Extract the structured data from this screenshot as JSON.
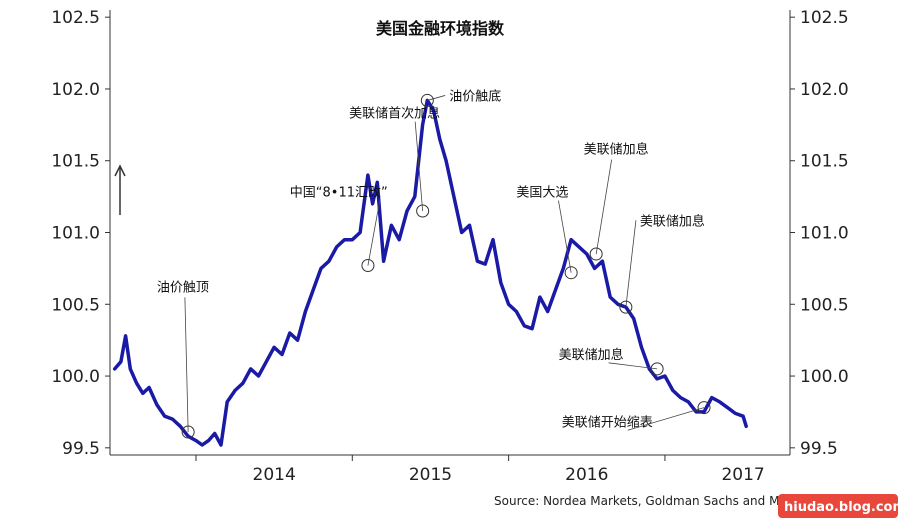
{
  "chart_data": {
    "type": "line",
    "title": "美国金融环境指数",
    "source": "Source: Nordea Markets, Goldman Sachs and Macrobond",
    "watermark": "hiudao.blog.com",
    "ylim": [
      99.45,
      102.55
    ],
    "yticks": [
      "102.5",
      "102.0",
      "101.5",
      "101.0",
      "100.5",
      "100.0",
      "99.5"
    ],
    "ytick_values": [
      102.5,
      102.0,
      101.5,
      101.0,
      100.5,
      100.0,
      99.5
    ],
    "xlim": [
      2013.45,
      2017.8
    ],
    "xticks": [
      "2014",
      "2015",
      "2016",
      "2017"
    ],
    "xtick_values": [
      2014,
      2015,
      2016,
      2017
    ],
    "year_boundaries": [
      2014.0,
      2015.0,
      2016.0,
      2017.0
    ],
    "up_arrow": true,
    "series": [
      {
        "color": "#1a1aa6",
        "x": [
          2013.48,
          2013.52,
          2013.55,
          2013.58,
          2013.62,
          2013.66,
          2013.7,
          2013.75,
          2013.8,
          2013.85,
          2013.9,
          2013.95,
          2014.0,
          2014.04,
          2014.08,
          2014.12,
          2014.16,
          2014.2,
          2014.25,
          2014.3,
          2014.35,
          2014.4,
          2014.45,
          2014.5,
          2014.55,
          2014.6,
          2014.65,
          2014.7,
          2014.75,
          2014.8,
          2014.85,
          2014.9,
          2014.95,
          2015.0,
          2015.05,
          2015.1,
          2015.13,
          2015.16,
          2015.2,
          2015.25,
          2015.3,
          2015.35,
          2015.4,
          2015.45,
          2015.48,
          2015.52,
          2015.56,
          2015.6,
          2015.65,
          2015.7,
          2015.75,
          2015.8,
          2015.85,
          2015.9,
          2015.95,
          2016.0,
          2016.05,
          2016.1,
          2016.15,
          2016.2,
          2016.25,
          2016.3,
          2016.35,
          2016.4,
          2016.45,
          2016.5,
          2016.55,
          2016.6,
          2016.65,
          2016.7,
          2016.75,
          2016.8,
          2016.85,
          2016.9,
          2016.95,
          2017.0,
          2017.05,
          2017.1,
          2017.15,
          2017.2,
          2017.25,
          2017.3,
          2017.35,
          2017.4,
          2017.45,
          2017.5,
          2017.52
        ],
        "y": [
          100.05,
          100.1,
          100.28,
          100.05,
          99.95,
          99.88,
          99.92,
          99.8,
          99.72,
          99.7,
          99.65,
          99.58,
          99.55,
          99.52,
          99.55,
          99.6,
          99.52,
          99.82,
          99.9,
          99.95,
          100.05,
          100.0,
          100.1,
          100.2,
          100.15,
          100.3,
          100.25,
          100.45,
          100.6,
          100.75,
          100.8,
          100.9,
          100.95,
          100.95,
          101.0,
          101.4,
          101.2,
          101.35,
          100.8,
          101.05,
          100.95,
          101.15,
          101.25,
          101.75,
          101.92,
          101.85,
          101.65,
          101.5,
          101.25,
          101.0,
          101.05,
          100.8,
          100.78,
          100.95,
          100.65,
          100.5,
          100.45,
          100.35,
          100.33,
          100.55,
          100.45,
          100.6,
          100.75,
          100.95,
          100.9,
          100.85,
          100.75,
          100.8,
          100.55,
          100.5,
          100.48,
          100.4,
          100.2,
          100.05,
          99.98,
          100.0,
          99.9,
          99.85,
          99.82,
          99.75,
          99.75,
          99.85,
          99.82,
          99.78,
          99.74,
          99.72,
          99.65
        ]
      }
    ],
    "annotations": [
      {
        "label": "油价触顶",
        "x": 2013.95,
        "y": 99.61,
        "anchor": "above",
        "tx": 2013.75,
        "ty": 100.59
      },
      {
        "label": "中国“8•11汇改”",
        "x": 2015.1,
        "y": 100.77,
        "anchor": "left",
        "tx": 2014.6,
        "ty": 101.25
      },
      {
        "label": "美联储首次加息",
        "x": 2015.45,
        "y": 101.15,
        "anchor": "left",
        "tx": 2014.98,
        "ty": 101.8
      },
      {
        "label": "油价触底",
        "x": 2015.48,
        "y": 101.92,
        "anchor": "right",
        "tx": 2015.62,
        "ty": 101.92
      },
      {
        "label": "美国大选",
        "x": 2016.4,
        "y": 100.72,
        "anchor": "left",
        "tx": 2016.05,
        "ty": 101.25
      },
      {
        "label": "美联储加息",
        "x": 2016.56,
        "y": 100.85,
        "anchor": "above",
        "tx": 2016.48,
        "ty": 101.55
      },
      {
        "label": "美联储加息",
        "x": 2016.75,
        "y": 100.48,
        "anchor": "right",
        "tx": 2016.84,
        "ty": 101.05
      },
      {
        "label": "美联储加息",
        "x": 2016.95,
        "y": 100.05,
        "anchor": "left",
        "tx": 2016.32,
        "ty": 100.12
      },
      {
        "label": "美联储开始缩表",
        "x": 2017.25,
        "y": 99.78,
        "anchor": "left",
        "tx": 2016.34,
        "ty": 99.65
      }
    ]
  }
}
